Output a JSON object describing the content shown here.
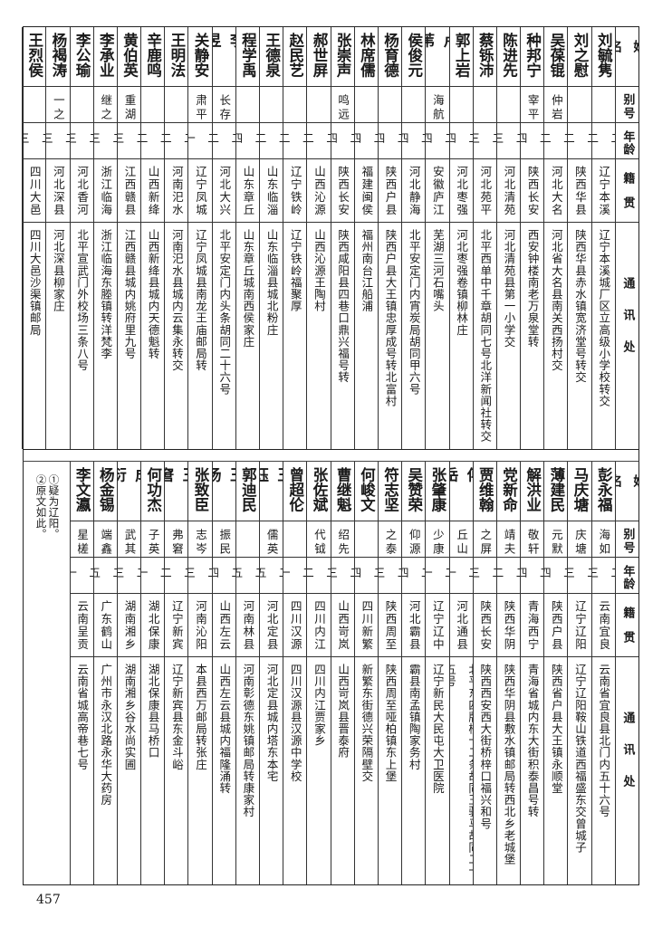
{
  "headers": {
    "name": "姓名",
    "alias": "别号",
    "age": "年龄",
    "native": "籍贯",
    "address": "通讯处"
  },
  "top_table": {
    "rows": [
      {
        "name": "刘毓隽",
        "alias": "",
        "age": "二二",
        "native": "辽宁本溪",
        "address": "辽宁本溪城厂区立高级小学校转交"
      },
      {
        "name": "刘之慰",
        "alias": "",
        "age": "二二",
        "native": "陕西华县",
        "address": "陕西华县赤水镇宽济堂号转交"
      },
      {
        "name": "吴葆锟",
        "alias": "仲岩",
        "age": "二二",
        "native": "河北大名",
        "address": "河北省大名县南关西扬村交"
      },
      {
        "name": "种邦宁",
        "alias": "宰平",
        "age": "二四",
        "native": "陕西长安",
        "address": "西安钟楼南老万泉堂转"
      },
      {
        "name": "陈进先",
        "alias": "",
        "age": "二三",
        "native": "河北清苑",
        "address": "河北清苑县第一小学交"
      },
      {
        "name": "蔡铄沛",
        "alias": "",
        "age": "二三",
        "native": "河北苑平",
        "address": "北平西单中千章胡同七号北洋新闻社转交"
      },
      {
        "name": "郭上岩",
        "alias": "",
        "age": "二四",
        "native": "河北枣强",
        "address": "河北枣强卷镇柳林庄"
      },
      {
        "name": "卢苇",
        "alias": "海航",
        "age": "二四",
        "native": "安徽庐江",
        "address": "芜湖三河石嘴头"
      },
      {
        "name": "侯俊元",
        "alias": "",
        "age": "二四",
        "native": "河北静海",
        "address": "北平安定门内宵炭局胡同甲六号"
      },
      {
        "name": "杨育德",
        "alias": "",
        "age": "二四",
        "native": "陕西户县",
        "address": "陕西户县大王镇忠厚成号转北富村"
      },
      {
        "name": "林席儒",
        "alias": "",
        "age": "二四",
        "native": "福建闽侯",
        "address": "福州南台江船浦"
      },
      {
        "name": "张崇声",
        "alias": "鸣远",
        "age": "二四",
        "native": "陕西长安",
        "address": "陕西咸阳县四巷口鼎兴福号转"
      },
      {
        "name": "郝世屏",
        "alias": "",
        "age": "二二",
        "native": "山西沁源",
        "address": "山西沁源王陶村"
      },
      {
        "name": "赵民艺",
        "alias": "",
        "age": "二二",
        "native": "辽宁铁岭",
        "address": "辽宁铁岭福聚厚"
      },
      {
        "name": "王德泉",
        "alias": "",
        "age": "二二",
        "native": "山东临淄",
        "address": "山东临淄县城北粉庄"
      },
      {
        "name": "程学禹",
        "alias": "",
        "age": "二四",
        "native": "山东章丘",
        "address": "山东章丘城南西侯家庄"
      },
      {
        "name": "李昱",
        "alias": "长存",
        "age": "二二",
        "native": "河北大兴",
        "address": "北平安定门内头条胡同二十六号"
      },
      {
        "name": "关静安",
        "alias": "肃平",
        "age": "二一",
        "native": "辽宁凤城",
        "address": "辽宁凤城县南龙王庙邮局转"
      },
      {
        "name": "王明法",
        "alias": "",
        "age": "二二",
        "native": "河南汜水",
        "address": "河南汜水县城内云集永转交"
      },
      {
        "name": "辛鹿鸣",
        "alias": "",
        "age": "二二",
        "native": "山西新绛",
        "address": "山西新绛县城内天德魁转"
      },
      {
        "name": "黄伯英",
        "alias": "重湖",
        "age": "二三",
        "native": "江西赣县",
        "address": "江西赣县城内姚府里九号"
      },
      {
        "name": "李承业",
        "alias": "继之",
        "age": "二三",
        "native": "浙江临海",
        "address": "浙江临海东塍镇转洋梵李"
      },
      {
        "name": "李公瑜",
        "alias": "",
        "age": "二三",
        "native": "河北香河",
        "address": "北平宣武门外校场三条八号"
      },
      {
        "name": "杨褐涛",
        "alias": "一之",
        "age": "二三",
        "native": "河北深县",
        "address": "河北深县柳家庄"
      },
      {
        "name": "王烈侯",
        "alias": "",
        "age": "二三",
        "native": "四川大邑",
        "address": "四川大邑沙渠镇邮局"
      }
    ]
  },
  "bottom_table": {
    "rows": [
      {
        "name": "彭永福",
        "alias": "海如",
        "age": "二三",
        "native": "云南宜良",
        "address": "云南省宜良县北门内五十六号"
      },
      {
        "name": "马庆塘",
        "alias": "庆塘",
        "age": "二三",
        "native": "辽宁辽阳",
        "address": "辽宁辽阳鞍山铁道西福盛东交曾城子"
      },
      {
        "name": "薄建民",
        "alias": "元默",
        "age": "二四",
        "native": "陕西户县",
        "address": "陕西省户县大王镇永顺堂"
      },
      {
        "name": "解洪业",
        "alias": "敬轩",
        "age": "二四",
        "native": "青海西宁",
        "address": "青海省城内东大街积泰昌号转"
      },
      {
        "name": "党新命",
        "alias": "靖夫",
        "age": "二二",
        "native": "陕西华阴",
        "address": "陕西华阴县敷水镇邮局转西北乡老城堡"
      },
      {
        "name": "贾维翰",
        "alias": "之屏",
        "age": "二三",
        "native": "陕西长安",
        "address": "陕西西安西大街桥梓口福兴和号"
      },
      {
        "name": "傅岳",
        "alias": "丘山",
        "age": "二一",
        "native": "河北通县",
        "address": "北平东四牌楼十二条胡同王驸马胡同二十五号"
      },
      {
        "name": "张肇康",
        "alias": "少康",
        "age": "二一",
        "native": "辽宁辽中",
        "address": "辽宁新民大民屯大卫医院"
      },
      {
        "name": "吴赞荣",
        "alias": "仰源",
        "age": "二四",
        "native": "河北霸县",
        "address": "霸县南孟镇陶家务村"
      },
      {
        "name": "符志坚",
        "alias": "之泰",
        "age": "二三",
        "native": "陕西周至",
        "address": "陕西周至哑柏镇东上堡"
      },
      {
        "name": "何峻文",
        "alias": "",
        "age": "二四",
        "native": "四川新繁",
        "address": "新繁东街德兴荣隔壁交"
      },
      {
        "name": "曹继魁",
        "alias": "绍先",
        "age": "二三",
        "native": "山西岢岚",
        "address": "山西岢岚县晋泰府"
      },
      {
        "name": "张佐斌",
        "alias": "代钺",
        "age": "二二",
        "native": "四川内江",
        "address": "四川内江贾家乡"
      },
      {
        "name": "曾超伦",
        "alias": "",
        "age": "二一",
        "native": "四川汉源",
        "address": "四川汉源县汉源中学校"
      },
      {
        "name": "王珏",
        "alias": "儒英",
        "age": "二五",
        "native": "河北定县",
        "address": "河北定县城内塔东本宅"
      },
      {
        "name": "郭迪民",
        "alias": "",
        "age": "二五",
        "native": "河南林县",
        "address": "河南彰德东姚镇邮局转康家村"
      },
      {
        "name": "王汤",
        "alias": "振民",
        "age": "二四",
        "native": "山西左云",
        "address": "山西左云县城内福隆涌转"
      },
      {
        "name": "张致臣",
        "alias": "志岑",
        "age": "二三",
        "native": "河南沁阳",
        "address": "本县西万邮局转张庄"
      },
      {
        "name": "王窘",
        "alias": "弗窘",
        "age": "二二",
        "native": "辽宁新宾",
        "address": "辽宁新宾县东金斗峪"
      },
      {
        "name": "何功杰",
        "alias": "子英",
        "age": "二一",
        "native": "湖北保康",
        "address": "湖北保康县马桥口"
      },
      {
        "name": "成衍",
        "alias": "武其",
        "age": "二三",
        "native": "湖南湘乡",
        "address": "湖南湘乡谷水尚实圃"
      },
      {
        "name": "杨金锡",
        "alias": "端鑫",
        "age": "二五",
        "native": "广东鹤山",
        "address": "广州市永汉北路永华大药房"
      },
      {
        "name": "李文瀛",
        "alias": "星槎",
        "age": "二一",
        "native": "云南呈贡",
        "address": "云南省城高帝巷七号"
      }
    ],
    "notes": [
      "①疑为辽阳。",
      "②原文如此。"
    ]
  },
  "page_number": "457"
}
